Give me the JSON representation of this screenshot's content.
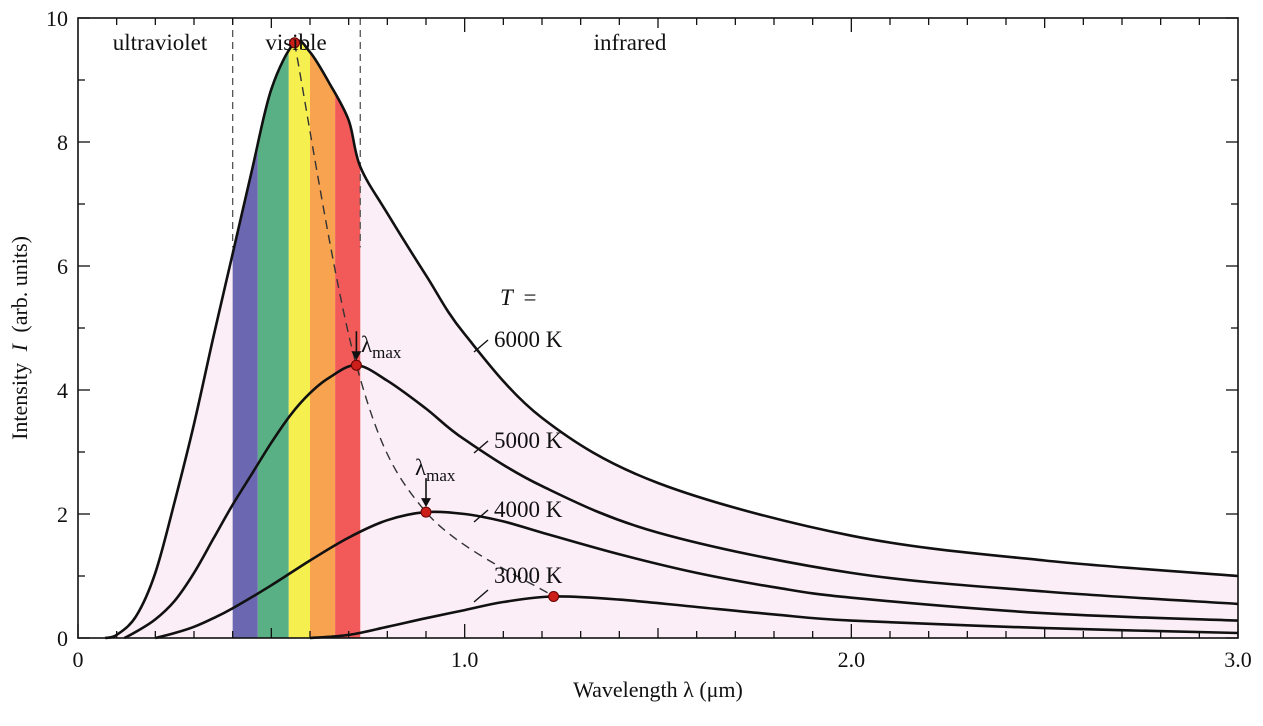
{
  "chart_data": {
    "type": "line",
    "title": "",
    "xlabel": "Wavelength  λ  (μm)",
    "ylabel_pre": "Intensity",
    "ylabel_var": "I",
    "ylabel_post": "(arb. units)",
    "xlim": [
      0,
      3.0
    ],
    "ylim": [
      0,
      10
    ],
    "x_ticks": [
      0,
      1.0,
      2.0,
      3.0
    ],
    "x_tick_labels": [
      "0",
      "1.0",
      "2.0",
      "3.0"
    ],
    "y_ticks": [
      0,
      2,
      4,
      6,
      8,
      10
    ],
    "y_tick_labels": [
      "0",
      "2",
      "4",
      "6",
      "8",
      "10"
    ],
    "grid": false,
    "regions": [
      {
        "label": "ultraviolet",
        "x_range": [
          0,
          0.4
        ]
      },
      {
        "label": "visible",
        "x_range": [
          0.4,
          0.73
        ]
      },
      {
        "label": "infrared",
        "x_range": [
          0.73,
          3.0
        ]
      }
    ],
    "region_boundaries": [
      0.4,
      0.73
    ],
    "visible_bands": [
      {
        "x_range": [
          0.4,
          0.465
        ],
        "color": "#6b67b0"
      },
      {
        "x_range": [
          0.465,
          0.545
        ],
        "color": "#5ab085"
      },
      {
        "x_range": [
          0.545,
          0.6
        ],
        "color": "#f5f050"
      },
      {
        "x_range": [
          0.6,
          0.665
        ],
        "color": "#f7a34f"
      },
      {
        "x_range": [
          0.665,
          0.73
        ],
        "color": "#f25a5a"
      }
    ],
    "fill_color": "#fbeef6",
    "temperature_prefix_var": "T",
    "temperature_prefix_eq": "=",
    "series": [
      {
        "name": "6000 K",
        "temperature_K": 6000,
        "peak": {
          "x": 0.56,
          "y": 9.6
        },
        "x": [
          0.07,
          0.1,
          0.15,
          0.2,
          0.25,
          0.3,
          0.35,
          0.4,
          0.45,
          0.5,
          0.56,
          0.6,
          0.65,
          0.7,
          0.73,
          0.8,
          0.9,
          1.0,
          1.2,
          1.5,
          2.0,
          2.5,
          3.0
        ],
        "y": [
          0.0,
          0.05,
          0.35,
          1.05,
          2.2,
          3.45,
          4.85,
          6.2,
          7.55,
          8.85,
          9.6,
          9.45,
          8.95,
          8.35,
          7.6,
          6.85,
          5.85,
          4.9,
          3.55,
          2.5,
          1.65,
          1.25,
          1.0
        ]
      },
      {
        "name": "5000 K",
        "temperature_K": 5000,
        "peak": {
          "x": 0.72,
          "y": 4.4
        },
        "x": [
          0.12,
          0.15,
          0.2,
          0.25,
          0.3,
          0.35,
          0.4,
          0.45,
          0.5,
          0.55,
          0.6,
          0.65,
          0.72,
          0.8,
          0.9,
          1.0,
          1.2,
          1.5,
          2.0,
          2.5,
          3.0
        ],
        "y": [
          0.0,
          0.1,
          0.3,
          0.6,
          1.05,
          1.6,
          2.15,
          2.65,
          3.15,
          3.6,
          3.95,
          4.2,
          4.4,
          4.15,
          3.7,
          3.2,
          2.45,
          1.7,
          1.05,
          0.75,
          0.55
        ]
      },
      {
        "name": "4000 K",
        "temperature_K": 4000,
        "peak": {
          "x": 0.9,
          "y": 2.03
        },
        "x": [
          0.2,
          0.25,
          0.3,
          0.35,
          0.4,
          0.5,
          0.6,
          0.7,
          0.8,
          0.9,
          1.0,
          1.1,
          1.2,
          1.4,
          1.6,
          1.8,
          2.0,
          2.5,
          3.0
        ],
        "y": [
          0.0,
          0.08,
          0.18,
          0.32,
          0.48,
          0.85,
          1.25,
          1.62,
          1.9,
          2.03,
          2.0,
          1.88,
          1.7,
          1.35,
          1.05,
          0.82,
          0.65,
          0.4,
          0.28
        ]
      },
      {
        "name": "3000 K",
        "temperature_K": 3000,
        "peak": {
          "x": 1.23,
          "y": 0.67
        },
        "x": [
          0.6,
          0.7,
          0.8,
          0.9,
          1.0,
          1.1,
          1.23,
          1.4,
          1.6,
          1.8,
          2.0,
          2.5,
          3.0
        ],
        "y": [
          0.0,
          0.05,
          0.18,
          0.32,
          0.45,
          0.58,
          0.67,
          0.62,
          0.5,
          0.38,
          0.28,
          0.16,
          0.08
        ]
      }
    ],
    "peak_locus_label": "λ",
    "peak_locus_label_sub": "max",
    "lambda_max_arrows": [
      {
        "series": "5000 K",
        "x": 0.72,
        "y": 4.4
      },
      {
        "series": "4000 K",
        "x": 0.9,
        "y": 2.03
      }
    ],
    "colors": {
      "curve": "#111111",
      "peak_marker": "#cc1f1a",
      "locus": "#333333"
    }
  }
}
